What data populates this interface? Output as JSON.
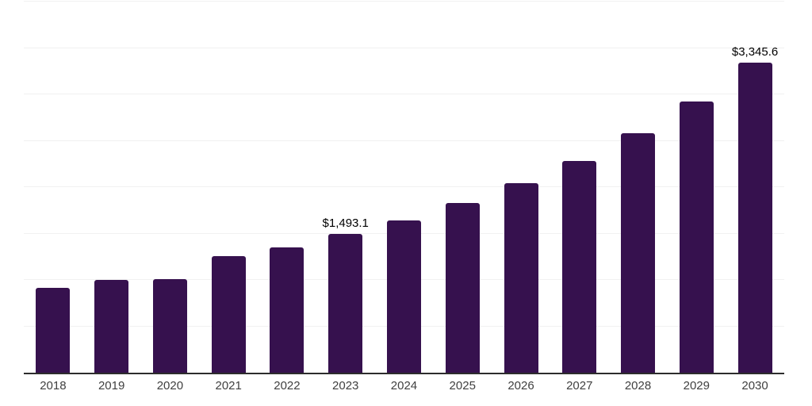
{
  "chart_data": {
    "type": "bar",
    "title": "",
    "xlabel": "",
    "ylabel": "",
    "categories": [
      "2018",
      "2019",
      "2020",
      "2021",
      "2022",
      "2023",
      "2024",
      "2025",
      "2026",
      "2027",
      "2028",
      "2029",
      "2030"
    ],
    "values": [
      915,
      1000,
      1010,
      1255,
      1350,
      1493.1,
      1640,
      1830,
      2040,
      2280,
      2580,
      2925,
      3345.6
    ],
    "point_labels": [
      "",
      "",
      "",
      "",
      "",
      "$1,493.1",
      "",
      "",
      "",
      "",
      "",
      "",
      "$3,345.6"
    ],
    "ylim": [
      0,
      4000
    ],
    "gridline_step": 500,
    "grid": "horizontal",
    "legend": "none",
    "y_axis_labels_visible": false
  },
  "style": {
    "bar_color": "#36114e",
    "gridline_color": "#f1f1f1",
    "axis_line_color": "#2d2d2d",
    "value_label_color": "#000000",
    "tick_label_color": "#404040",
    "background_color": "#ffffff"
  }
}
